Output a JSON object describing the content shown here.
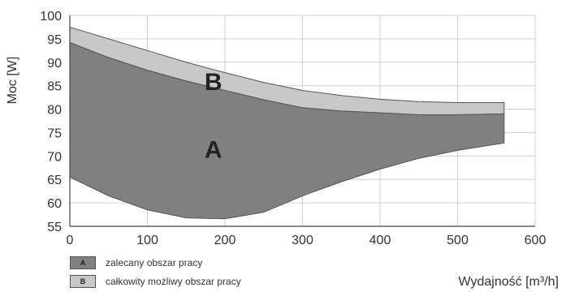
{
  "chart_data": {
    "type": "area",
    "xlabel": "Wydajność [m³/h]",
    "ylabel": "Moc [W]",
    "xlim": [
      0,
      600
    ],
    "ylim": [
      55,
      100
    ],
    "xticks": [
      0,
      100,
      200,
      300,
      400,
      500,
      600
    ],
    "yticks": [
      55,
      60,
      65,
      70,
      75,
      80,
      85,
      90,
      95,
      100
    ],
    "grid": true,
    "legend": "bottom-left",
    "series": [
      {
        "name": "zalecany obszar pracy",
        "key": "A",
        "color": "#808080",
        "upper": {
          "x": [
            0,
            50,
            100,
            150,
            200,
            250,
            300,
            350,
            400,
            450,
            500,
            560
          ],
          "y": [
            94.2,
            91,
            88.3,
            86,
            84,
            82,
            80.3,
            79.6,
            79.2,
            78.8,
            78.8,
            79
          ]
        },
        "lower": {
          "x": [
            0,
            50,
            100,
            150,
            200,
            250,
            300,
            350,
            400,
            450,
            500,
            560
          ],
          "y": [
            65.5,
            61.5,
            58.5,
            56.8,
            56.6,
            58,
            61.5,
            64.5,
            67.2,
            69.5,
            71.2,
            72.8
          ]
        }
      },
      {
        "name": "całkowity możliwy obszar pracy",
        "key": "B",
        "color": "#c8c8c8",
        "upper": {
          "x": [
            0,
            50,
            100,
            150,
            200,
            250,
            300,
            350,
            400,
            450,
            500,
            560
          ],
          "y": [
            97.5,
            95,
            92.5,
            90,
            87.8,
            85.7,
            84,
            82.9,
            82.1,
            81.6,
            81.4,
            81.4
          ]
        },
        "lower": {
          "x": [
            0,
            50,
            100,
            150,
            200,
            250,
            300,
            350,
            400,
            450,
            500,
            560
          ],
          "y": [
            94.2,
            91,
            88.3,
            86,
            84,
            82,
            80.3,
            79.6,
            79.2,
            78.8,
            78.8,
            79
          ]
        }
      }
    ],
    "annotations": [
      {
        "text": "A",
        "x": 185,
        "y": 71.5
      },
      {
        "text": "B",
        "x": 185,
        "y": 86
      }
    ]
  }
}
